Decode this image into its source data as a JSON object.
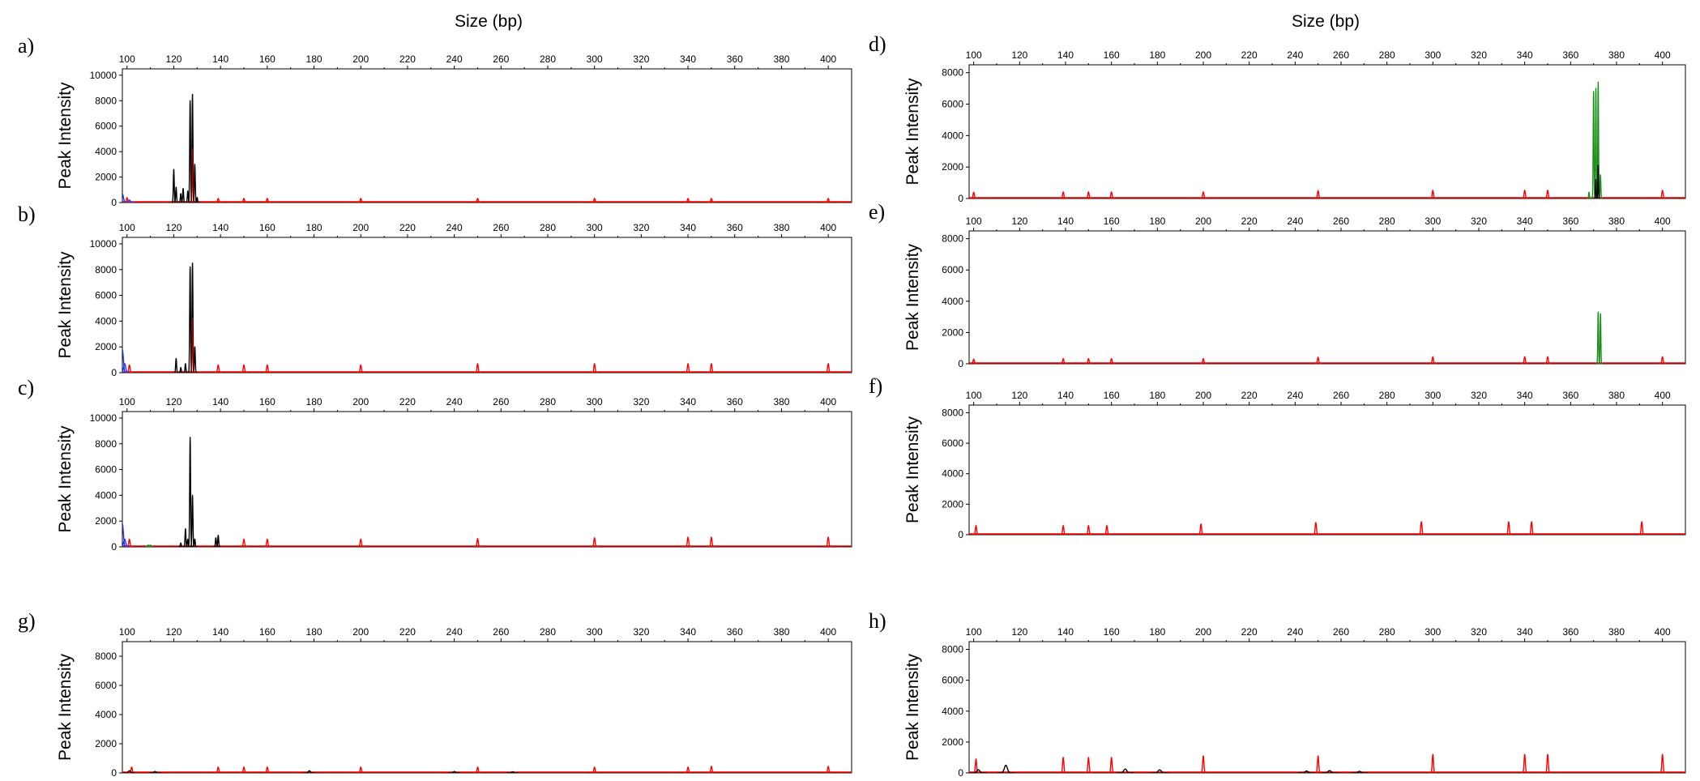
{
  "figure": {
    "left_title": "Size (bp)",
    "right_title": "Size (bp)"
  },
  "colors": {
    "ladder": "#ff0000",
    "black": "#000000",
    "green": "#1a8f1a",
    "darkred": "#a00000",
    "blue": "#2233ff",
    "gray": "#777777",
    "frame": "#000000"
  },
  "chart_data": [
    {
      "panel": "a)",
      "type": "line",
      "xlabel": "Size (bp)",
      "ylabel": "Peak Intensity",
      "xlim": [
        98,
        410
      ],
      "ylim": [
        0,
        10500
      ],
      "xticks": [
        100,
        120,
        140,
        160,
        180,
        200,
        220,
        240,
        260,
        280,
        300,
        320,
        340,
        360,
        380,
        400
      ],
      "yticks": [
        0,
        2000,
        4000,
        6000,
        8000,
        10000
      ],
      "series": [
        {
          "name": "ladder",
          "color": "#ff0000",
          "peaks": [
            [
              100,
              380
            ],
            [
              139,
              320
            ],
            [
              150,
              320
            ],
            [
              160,
              320
            ],
            [
              200,
              320
            ],
            [
              250,
              320
            ],
            [
              300,
              320
            ],
            [
              340,
              320
            ],
            [
              350,
              320
            ],
            [
              400,
              320
            ]
          ],
          "width": 0.5
        },
        {
          "name": "black",
          "color": "#000000",
          "peaks": [
            [
              120,
              2600
            ],
            [
              121,
              1200
            ],
            [
              123,
              700
            ],
            [
              124,
              1100
            ],
            [
              126,
              900
            ],
            [
              127,
              8000
            ],
            [
              128,
              8500
            ],
            [
              129,
              3000
            ],
            [
              130,
              400
            ]
          ],
          "width": 0.35
        },
        {
          "name": "darkred",
          "color": "#a00000",
          "peaks": [
            [
              128,
              4200
            ]
          ],
          "width": 0.3
        },
        {
          "name": "blue",
          "color": "#2233ff",
          "peaks": [
            [
              98,
              700
            ],
            [
              101,
              200
            ]
          ],
          "width": 0.8
        }
      ]
    },
    {
      "panel": "b)",
      "type": "line",
      "xlabel": "Size (bp)",
      "ylabel": "Peak Intensity",
      "xlim": [
        98,
        410
      ],
      "ylim": [
        0,
        10500
      ],
      "xticks": [
        100,
        120,
        140,
        160,
        180,
        200,
        220,
        240,
        260,
        280,
        300,
        320,
        340,
        360,
        380,
        400
      ],
      "yticks": [
        0,
        2000,
        4000,
        6000,
        8000,
        10000
      ],
      "series": [
        {
          "name": "ladder",
          "color": "#ff0000",
          "peaks": [
            [
              101,
              600
            ],
            [
              139,
              600
            ],
            [
              150,
              600
            ],
            [
              160,
              600
            ],
            [
              200,
              600
            ],
            [
              250,
              700
            ],
            [
              300,
              700
            ],
            [
              340,
              700
            ],
            [
              350,
              700
            ],
            [
              400,
              700
            ]
          ],
          "width": 0.5
        },
        {
          "name": "black",
          "color": "#000000",
          "peaks": [
            [
              121,
              1100
            ],
            [
              123,
              400
            ],
            [
              125,
              700
            ],
            [
              127,
              8200
            ],
            [
              128,
              8500
            ],
            [
              129,
              2000
            ]
          ],
          "width": 0.35
        },
        {
          "name": "darkred",
          "color": "#a00000",
          "peaks": [
            [
              128,
              4200
            ]
          ],
          "width": 0.3
        },
        {
          "name": "blue",
          "color": "#2233ff",
          "peaks": [
            [
              98,
              1800
            ],
            [
              99,
              700
            ]
          ],
          "width": 0.8
        }
      ]
    },
    {
      "panel": "c)",
      "type": "line",
      "xlabel": "Size (bp)",
      "ylabel": "Peak Intensity",
      "xlim": [
        98,
        410
      ],
      "ylim": [
        0,
        10500
      ],
      "xticks": [
        100,
        120,
        140,
        160,
        180,
        200,
        220,
        240,
        260,
        280,
        300,
        320,
        340,
        360,
        380,
        400
      ],
      "yticks": [
        0,
        2000,
        4000,
        6000,
        8000,
        10000
      ],
      "series": [
        {
          "name": "ladder",
          "color": "#ff0000",
          "peaks": [
            [
              101,
              600
            ],
            [
              139,
              600
            ],
            [
              150,
              600
            ],
            [
              160,
              600
            ],
            [
              200,
              600
            ],
            [
              250,
              650
            ],
            [
              300,
              700
            ],
            [
              340,
              750
            ],
            [
              350,
              750
            ],
            [
              400,
              750
            ]
          ],
          "width": 0.5
        },
        {
          "name": "black",
          "color": "#000000",
          "peaks": [
            [
              123,
              300
            ],
            [
              125,
              1400
            ],
            [
              126,
              600
            ],
            [
              127,
              8500
            ],
            [
              128,
              4000
            ],
            [
              129,
              600
            ],
            [
              138,
              700
            ],
            [
              139,
              900
            ]
          ],
          "width": 0.35
        },
        {
          "name": "green",
          "color": "#1a8f1a",
          "peaks": [
            [
              109,
              150
            ],
            [
              110,
              150
            ]
          ],
          "width": 0.4
        },
        {
          "name": "blue",
          "color": "#2233ff",
          "peaks": [
            [
              98,
              1800
            ],
            [
              99,
              600
            ]
          ],
          "width": 0.8
        }
      ]
    },
    {
      "panel": "d)",
      "type": "line",
      "xlabel": "Size (bp)",
      "ylabel": "Peak Intensity",
      "xlim": [
        98,
        410
      ],
      "ylim": [
        0,
        8500
      ],
      "xticks": [
        100,
        120,
        140,
        160,
        180,
        200,
        220,
        240,
        260,
        280,
        300,
        320,
        340,
        360,
        380,
        400
      ],
      "yticks": [
        0,
        2000,
        4000,
        6000,
        8000
      ],
      "series": [
        {
          "name": "ladder",
          "color": "#ff0000",
          "peaks": [
            [
              100,
              400
            ],
            [
              139,
              420
            ],
            [
              150,
              420
            ],
            [
              160,
              420
            ],
            [
              200,
              420
            ],
            [
              250,
              500
            ],
            [
              300,
              520
            ],
            [
              340,
              520
            ],
            [
              350,
              520
            ],
            [
              400,
              520
            ]
          ],
          "width": 0.5
        },
        {
          "name": "green",
          "color": "#1a8f1a",
          "peaks": [
            [
              368,
              400
            ],
            [
              370,
              6800
            ],
            [
              371,
              7000
            ],
            [
              372,
              7400
            ],
            [
              373,
              1500
            ]
          ],
          "width": 0.3
        },
        {
          "name": "black",
          "color": "#000000",
          "peaks": [
            [
              371,
              1200
            ],
            [
              372,
              2100
            ]
          ],
          "width": 0.25
        }
      ]
    },
    {
      "panel": "e)",
      "type": "line",
      "xlabel": "Size (bp)",
      "ylabel": "Peak Intensity",
      "xlim": [
        98,
        410
      ],
      "ylim": [
        0,
        8500
      ],
      "xticks": [
        100,
        120,
        140,
        160,
        180,
        200,
        220,
        240,
        260,
        280,
        300,
        320,
        340,
        360,
        380,
        400
      ],
      "yticks": [
        0,
        2000,
        4000,
        6000,
        8000
      ],
      "series": [
        {
          "name": "ladder",
          "color": "#ff0000",
          "peaks": [
            [
              100,
              300
            ],
            [
              139,
              330
            ],
            [
              150,
              330
            ],
            [
              160,
              330
            ],
            [
              200,
              330
            ],
            [
              250,
              420
            ],
            [
              300,
              450
            ],
            [
              340,
              450
            ],
            [
              350,
              450
            ],
            [
              400,
              450
            ]
          ],
          "width": 0.5
        },
        {
          "name": "green",
          "color": "#1a8f1a",
          "peaks": [
            [
              372,
              3300
            ],
            [
              373,
              3200
            ]
          ],
          "width": 0.3
        }
      ]
    },
    {
      "panel": "f)",
      "type": "line",
      "xlabel": "Size (bp)",
      "ylabel": "Peak Intensity",
      "xlim": [
        98,
        410
      ],
      "ylim": [
        0,
        8500
      ],
      "xticks": [
        100,
        120,
        140,
        160,
        180,
        200,
        220,
        240,
        260,
        280,
        300,
        320,
        340,
        360,
        380,
        400
      ],
      "yticks": [
        0,
        2000,
        4000,
        6000,
        8000
      ],
      "series": [
        {
          "name": "ladder",
          "color": "#ff0000",
          "peaks": [
            [
              101,
              600
            ],
            [
              139,
              600
            ],
            [
              150,
              600
            ],
            [
              158,
              600
            ],
            [
              199,
              700
            ],
            [
              249,
              800
            ],
            [
              295,
              850
            ],
            [
              333,
              850
            ],
            [
              343,
              850
            ],
            [
              391,
              850
            ]
          ],
          "width": 0.5
        }
      ]
    },
    {
      "panel": "g)",
      "type": "line",
      "xlabel": "Size (bp)",
      "ylabel": "Peak Intensity",
      "xlim": [
        98,
        410
      ],
      "ylim": [
        0,
        9000
      ],
      "xticks": [
        100,
        120,
        140,
        160,
        180,
        200,
        220,
        240,
        260,
        280,
        300,
        320,
        340,
        360,
        380,
        400
      ],
      "yticks": [
        0,
        2000,
        4000,
        6000,
        8000
      ],
      "series": [
        {
          "name": "ladder",
          "color": "#ff0000",
          "peaks": [
            [
              102,
              400
            ],
            [
              139,
              400
            ],
            [
              150,
              400
            ],
            [
              160,
              400
            ],
            [
              200,
              400
            ],
            [
              250,
              400
            ],
            [
              300,
              400
            ],
            [
              340,
              400
            ],
            [
              350,
              450
            ],
            [
              400,
              450
            ]
          ],
          "width": 0.5
        },
        {
          "name": "black",
          "color": "#000000",
          "peaks": [
            [
              101,
              150
            ],
            [
              112,
              100
            ],
            [
              178,
              150
            ],
            [
              240,
              100
            ],
            [
              265,
              80
            ]
          ],
          "width": 0.8
        }
      ]
    },
    {
      "panel": "h)",
      "type": "line",
      "xlabel": "Size (bp)",
      "ylabel": "Peak Intensity",
      "xlim": [
        98,
        410
      ],
      "ylim": [
        0,
        8500
      ],
      "xticks": [
        100,
        120,
        140,
        160,
        180,
        200,
        220,
        240,
        260,
        280,
        300,
        320,
        340,
        360,
        380,
        400
      ],
      "yticks": [
        0,
        2000,
        4000,
        6000,
        8000
      ],
      "series": [
        {
          "name": "ladder",
          "color": "#ff0000",
          "peaks": [
            [
              101,
              900
            ],
            [
              139,
              1000
            ],
            [
              150,
              1000
            ],
            [
              160,
              1000
            ],
            [
              200,
              1100
            ],
            [
              250,
              1100
            ],
            [
              300,
              1200
            ],
            [
              340,
              1200
            ],
            [
              350,
              1200
            ],
            [
              400,
              1200
            ]
          ],
          "width": 0.5
        },
        {
          "name": "black",
          "color": "#000000",
          "peaks": [
            [
              102,
              200
            ],
            [
              114,
              500
            ],
            [
              166,
              250
            ],
            [
              181,
              200
            ],
            [
              245,
              120
            ],
            [
              255,
              150
            ],
            [
              268,
              100
            ]
          ],
          "width": 1.2
        }
      ]
    }
  ]
}
